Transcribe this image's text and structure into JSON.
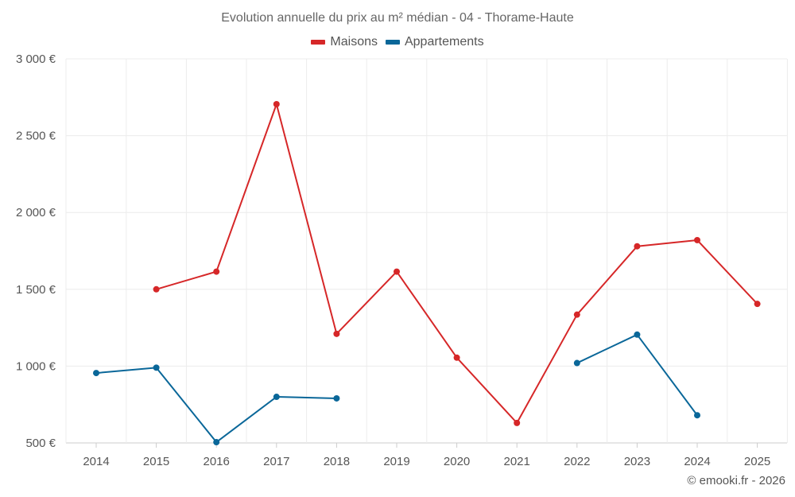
{
  "chart_data": {
    "type": "line",
    "title": "Evolution annuelle du prix au m² médian - 04 - Thorame-Haute",
    "categories": [
      "2014",
      "2015",
      "2016",
      "2017",
      "2018",
      "2019",
      "2020",
      "2021",
      "2022",
      "2023",
      "2024",
      "2025"
    ],
    "y_ticks": [
      "3 000 €",
      "2 500 €",
      "2 000 €",
      "1 500 €",
      "1 000 €",
      "500 €"
    ],
    "y_tick_values": [
      3000,
      2500,
      2000,
      1500,
      1000,
      500
    ],
    "ylim": [
      500,
      3000
    ],
    "legend_position": "top-center",
    "series": [
      {
        "name": "Maisons",
        "color": "#d62728",
        "values": [
          null,
          1500,
          1615,
          2705,
          1210,
          1615,
          1055,
          630,
          1335,
          1780,
          1820,
          1405
        ]
      },
      {
        "name": "Appartements",
        "color": "#0a6799",
        "values": [
          955,
          990,
          505,
          800,
          790,
          null,
          null,
          null,
          1020,
          1205,
          680,
          null
        ]
      }
    ]
  },
  "footer": {
    "copyright": "© emooki.fr - 2026"
  }
}
